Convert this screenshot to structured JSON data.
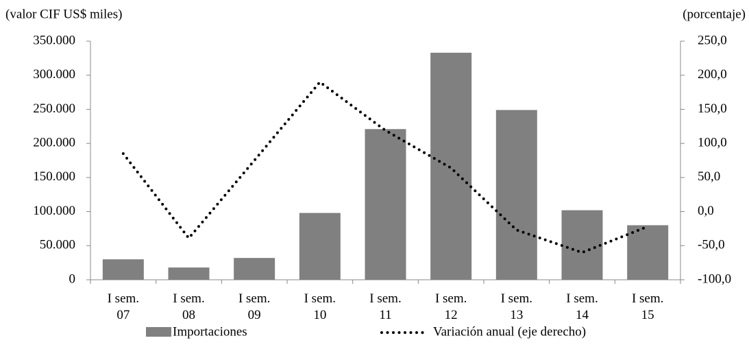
{
  "chart_data": {
    "type": "bar-line",
    "y_label": "(valor CIF US$ miles)",
    "y2_label": "(porcentaje)",
    "categories": [
      "I sem. 07",
      "I sem. 08",
      "I sem. 09",
      "I sem. 10",
      "I sem. 11",
      "I sem. 12",
      "I sem. 13",
      "I sem. 14",
      "I sem. 15"
    ],
    "series": [
      {
        "name": "Importaciones",
        "type": "bar",
        "color": "#808080",
        "values": [
          30000,
          18000,
          32000,
          98000,
          221000,
          333000,
          249000,
          102000,
          80000
        ]
      },
      {
        "name": "Variación anual (eje derecho)",
        "type": "line",
        "axis": "y2",
        "color": "#000000",
        "values": [
          85,
          -39,
          75,
          190,
          119,
          64,
          -27,
          -60,
          -22
        ]
      }
    ],
    "ylim": [
      0,
      350000
    ],
    "yticks": [
      0,
      {
        "value": 50000,
        "label": "50.000"
      },
      {
        "value": 100000,
        "label": "100.000"
      },
      {
        "value": 150000,
        "label": "150.000"
      },
      {
        "value": 200000,
        "label": "200.000"
      },
      {
        "value": 250000,
        "label": "250.000"
      },
      {
        "value": 300000,
        "label": "300.000"
      },
      {
        "value": 350000,
        "label": "350.000"
      }
    ],
    "y2lim": [
      -100,
      250
    ],
    "y2ticks": [
      {
        "value": -100,
        "label": "-100,0"
      },
      {
        "value": -50,
        "label": "-50,0"
      },
      {
        "value": 0,
        "label": "0,0"
      },
      {
        "value": 50,
        "label": "50,0"
      },
      {
        "value": 100,
        "label": "100,0"
      },
      {
        "value": 150,
        "label": "150,0"
      },
      {
        "value": 200,
        "label": "200,0"
      },
      {
        "value": 250,
        "label": "250,0"
      }
    ],
    "grid": false,
    "legend": "bottom"
  }
}
